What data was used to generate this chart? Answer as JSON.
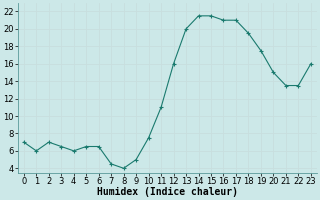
{
  "x": [
    0,
    1,
    2,
    3,
    4,
    5,
    6,
    7,
    8,
    9,
    10,
    11,
    12,
    13,
    14,
    15,
    16,
    17,
    18,
    19,
    20,
    21,
    22,
    23
  ],
  "y": [
    7,
    6,
    7,
    6.5,
    6,
    6.5,
    6.5,
    4.5,
    4,
    5,
    7.5,
    11,
    16,
    20,
    21.5,
    21.5,
    21,
    21,
    19.5,
    17.5,
    15,
    13.5,
    13.5,
    16
  ],
  "xlabel": "Humidex (Indice chaleur)",
  "xlim": [
    -0.5,
    23.5
  ],
  "ylim": [
    3.5,
    23
  ],
  "yticks": [
    4,
    6,
    8,
    10,
    12,
    14,
    16,
    18,
    20,
    22
  ],
  "xticks": [
    0,
    1,
    2,
    3,
    4,
    5,
    6,
    7,
    8,
    9,
    10,
    11,
    12,
    13,
    14,
    15,
    16,
    17,
    18,
    19,
    20,
    21,
    22,
    23
  ],
  "line_color": "#1a7a6e",
  "marker": "+",
  "bg_color": "#cce8e8",
  "grid_color": "#b0d0d0",
  "label_fontsize": 7,
  "tick_fontsize": 6
}
